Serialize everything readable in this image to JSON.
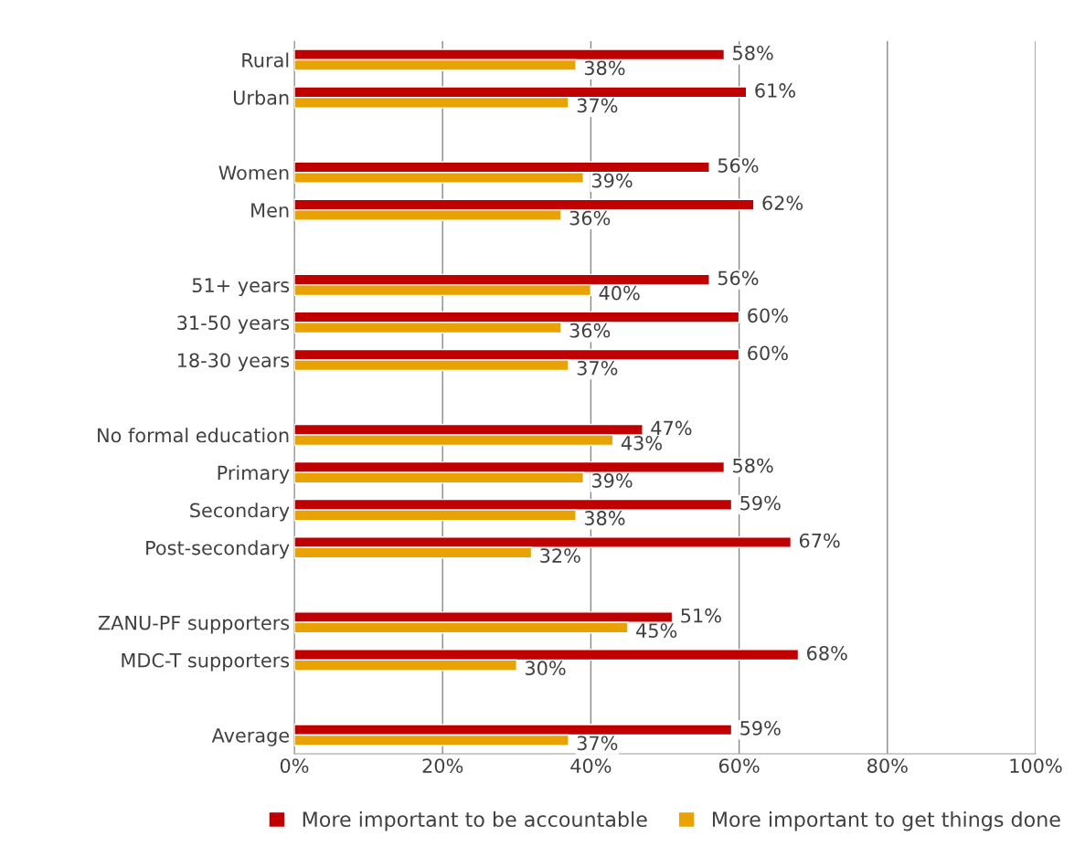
{
  "chart_data": {
    "type": "bar",
    "orientation": "horizontal",
    "categories": [
      "Rural",
      "Urban",
      null,
      "Women",
      "Men",
      null,
      "51+ years",
      "31-50 years",
      "18-30 years",
      null,
      "No formal education",
      "Primary",
      "Secondary",
      "Post-secondary",
      null,
      "ZANU-PF supporters",
      "MDC-T supporters",
      null,
      "Average"
    ],
    "series": [
      {
        "name": "More important to be accountable",
        "color": "#c00000",
        "values": [
          58,
          61,
          null,
          56,
          62,
          null,
          56,
          60,
          60,
          null,
          47,
          58,
          59,
          67,
          null,
          51,
          68,
          null,
          59
        ],
        "value_labels": [
          "58%",
          "61%",
          null,
          "56%",
          "62%",
          null,
          "56%",
          "60%",
          "60%",
          null,
          "47%",
          "58%",
          "59%",
          "67%",
          null,
          "51%",
          "68%",
          null,
          "59%"
        ]
      },
      {
        "name": "More important to get things done",
        "color": "#e8a202",
        "values": [
          38,
          37,
          null,
          39,
          36,
          null,
          40,
          36,
          37,
          null,
          43,
          39,
          38,
          32,
          null,
          45,
          30,
          null,
          37
        ],
        "value_labels": [
          "38%",
          "37%",
          null,
          "39%",
          "36%",
          null,
          "40%",
          "36%",
          "37%",
          null,
          "43%",
          "39%",
          "38%",
          "32%",
          null,
          "45%",
          "30%",
          null,
          "37%"
        ]
      }
    ],
    "xlim": [
      0,
      100
    ],
    "xticks": [
      {
        "value": 0,
        "label": "0%"
      },
      {
        "value": 20,
        "label": "20%"
      },
      {
        "value": 40,
        "label": "40%"
      },
      {
        "value": 60,
        "label": "60%"
      },
      {
        "value": 80,
        "label": "80%"
      },
      {
        "value": 100,
        "label": "100%"
      }
    ],
    "grid": "x",
    "legend": "bottom"
  }
}
